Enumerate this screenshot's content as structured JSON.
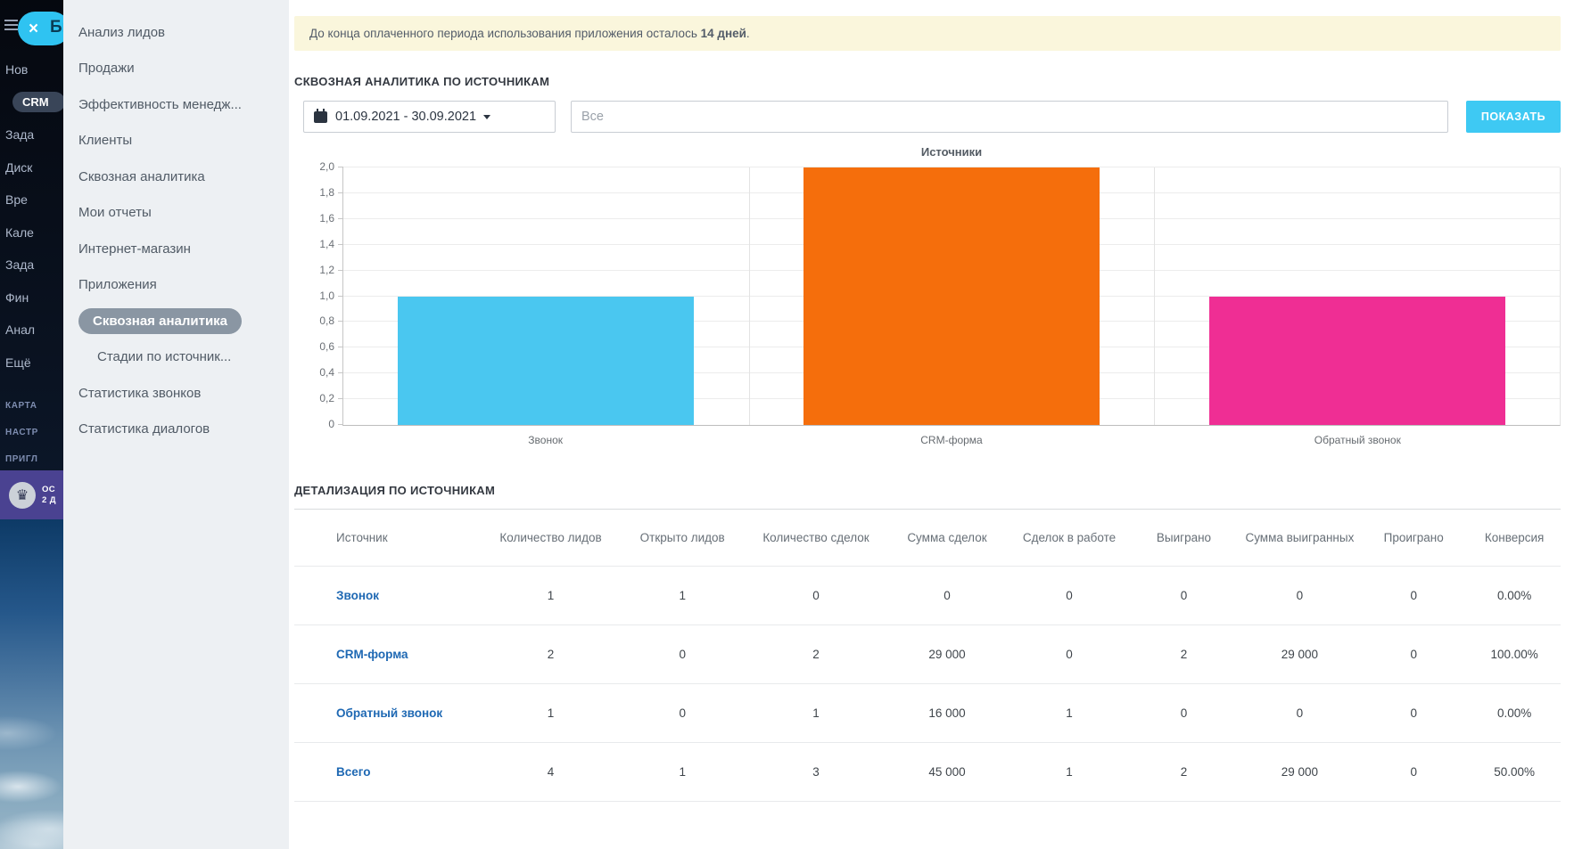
{
  "colors": {
    "accent_cyan": "#3ec9f3",
    "notice_bg": "#faf6dc",
    "selected_pill": "#8a96a3",
    "link_blue": "#1e68b3",
    "trial_banner": "#4a4291"
  },
  "rail": {
    "logo_fragment": "Би",
    "close_label": "×",
    "items": [
      {
        "label": "Нов",
        "pill": false
      },
      {
        "label": "CRM",
        "pill": true
      },
      {
        "label": "Зада",
        "pill": false
      },
      {
        "label": "Диск",
        "pill": false
      },
      {
        "label": "Вре",
        "pill": false
      },
      {
        "label": "Кале",
        "pill": false
      },
      {
        "label": "Зада",
        "pill": false
      },
      {
        "label": "Фин",
        "pill": false
      },
      {
        "label": "Анал",
        "pill": false
      },
      {
        "label": "Ещё",
        "pill": false
      }
    ],
    "footer_items": [
      {
        "label": "КАРТА"
      },
      {
        "label": "НАСТР"
      },
      {
        "label": "ПРИГЛ"
      }
    ],
    "trial": {
      "crown_icon": "♛",
      "line1": "ОС",
      "line2": "2 Д"
    }
  },
  "flyout": {
    "items": [
      {
        "label": "Анализ лидов",
        "selected": false,
        "sub": false
      },
      {
        "label": "Продажи",
        "selected": false,
        "sub": false
      },
      {
        "label": "Эффективность менедж...",
        "selected": false,
        "sub": false
      },
      {
        "label": "Клиенты",
        "selected": false,
        "sub": false
      },
      {
        "label": "Сквозная аналитика",
        "selected": false,
        "sub": false
      },
      {
        "label": "Мои отчеты",
        "selected": false,
        "sub": false
      },
      {
        "label": "Интернет-магазин",
        "selected": false,
        "sub": false
      },
      {
        "label": "Приложения",
        "selected": false,
        "sub": false
      },
      {
        "label": "Сквозная аналитика",
        "selected": true,
        "sub": false
      },
      {
        "label": "Стадии по источник...",
        "selected": false,
        "sub": true
      },
      {
        "label": "Статистика звонков",
        "selected": false,
        "sub": false
      },
      {
        "label": "Статистика диалогов",
        "selected": false,
        "sub": false
      }
    ]
  },
  "main": {
    "notice": {
      "prefix": "До конца оплаченного периода использования приложения осталось ",
      "highlight": "14 дней",
      "suffix": "."
    },
    "section_title": "СКВОЗНАЯ АНАЛИТИКА ПО ИСТОЧНИКАМ",
    "filters": {
      "date_range": "01.09.2021 - 30.09.2021",
      "source_placeholder": "Все",
      "submit_label": "ПОКАЗАТЬ"
    },
    "chart_data": {
      "type": "bar",
      "title": "Источники",
      "categories": [
        "Звонок",
        "CRM-форма",
        "Обратный звонок"
      ],
      "values": [
        1,
        2,
        1
      ],
      "bar_colors": [
        "#4ac7f0",
        "#f56e0c",
        "#ef2e94"
      ],
      "ylim": [
        0,
        2
      ],
      "ytick_labels": [
        "0",
        "0,2",
        "0,4",
        "0,6",
        "0,8",
        "1,0",
        "1,2",
        "1,4",
        "1,6",
        "1,8",
        "2,0"
      ],
      "grid": true,
      "legend": false
    },
    "details": {
      "title": "ДЕТАЛИЗАЦИЯ ПО ИСТОЧНИКАМ",
      "columns": [
        "Источник",
        "Количество лидов",
        "Открыто лидов",
        "Количество сделок",
        "Сумма сделок",
        "Сделок в работе",
        "Выиграно",
        "Сумма выигранных",
        "Проиграно",
        "Конверсия"
      ],
      "rows": [
        {
          "source": "Звонок",
          "values": [
            "1",
            "1",
            "0",
            "0",
            "0",
            "0",
            "0",
            "0",
            "0.00%"
          ]
        },
        {
          "source": "CRM-форма",
          "values": [
            "2",
            "0",
            "2",
            "29 000",
            "0",
            "2",
            "29 000",
            "0",
            "100.00%"
          ]
        },
        {
          "source": "Обратный звонок",
          "values": [
            "1",
            "0",
            "1",
            "16 000",
            "1",
            "0",
            "0",
            "0",
            "0.00%"
          ]
        },
        {
          "source": "Всего",
          "values": [
            "4",
            "1",
            "3",
            "45 000",
            "1",
            "2",
            "29 000",
            "0",
            "50.00%"
          ]
        }
      ]
    }
  }
}
